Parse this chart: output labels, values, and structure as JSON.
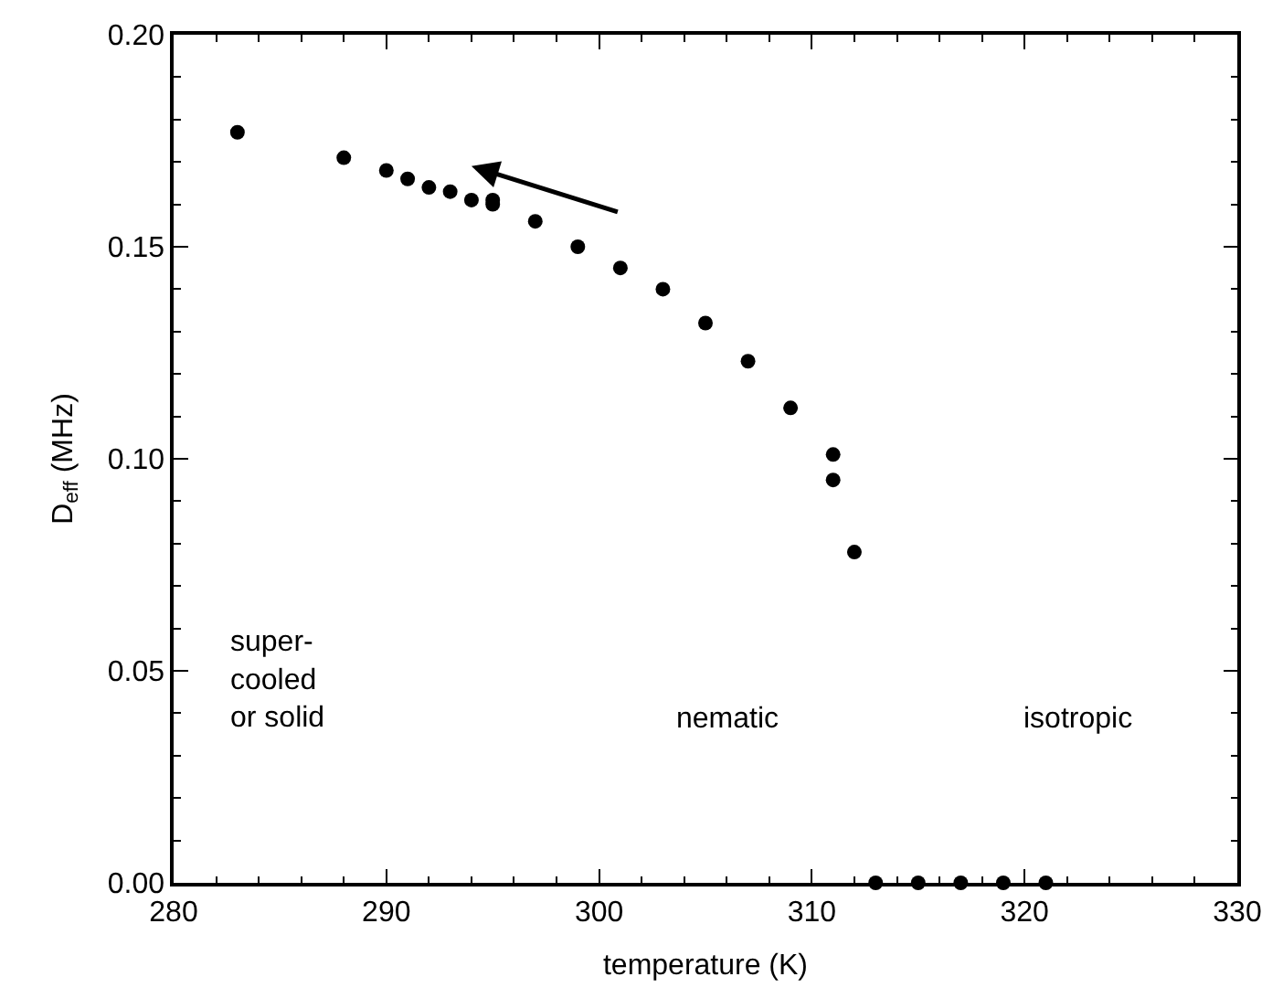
{
  "chart_data": {
    "type": "scatter",
    "xlabel": "temperature (K)",
    "ylabel": "D$_{eff}$ (MHz)",
    "x": [
      283,
      288,
      290,
      291,
      292,
      293,
      294,
      295,
      295,
      297,
      299,
      301,
      303,
      305,
      307,
      309,
      311,
      311,
      312,
      313,
      315,
      317,
      319,
      321
    ],
    "series": [
      {
        "color": "#000000",
        "values": [
          0.177,
          0.171,
          0.168,
          0.166,
          0.164,
          0.163,
          0.161,
          0.161,
          0.16,
          0.156,
          0.15,
          0.145,
          0.14,
          0.132,
          0.123,
          0.112,
          0.101,
          0.095,
          0.078,
          0,
          0,
          0,
          0,
          0
        ]
      }
    ],
    "xlim": [
      280,
      330
    ],
    "xticks": [
      280,
      290,
      300,
      310,
      320,
      330
    ],
    "ylim": [
      0,
      0.2
    ],
    "yticks": [
      {
        "value": 0,
        "label": "0.00"
      },
      {
        "value": 0.05,
        "label": "0.05"
      },
      {
        "value": 0.1,
        "label": "0.10"
      },
      {
        "value": 0.15,
        "label": "0.15"
      },
      {
        "value": 0.2,
        "label": "0.20"
      }
    ],
    "marker": "circle",
    "annotations": [
      "super-\ncooled\nor solid",
      "nematic",
      "isotropic"
    ]
  }
}
